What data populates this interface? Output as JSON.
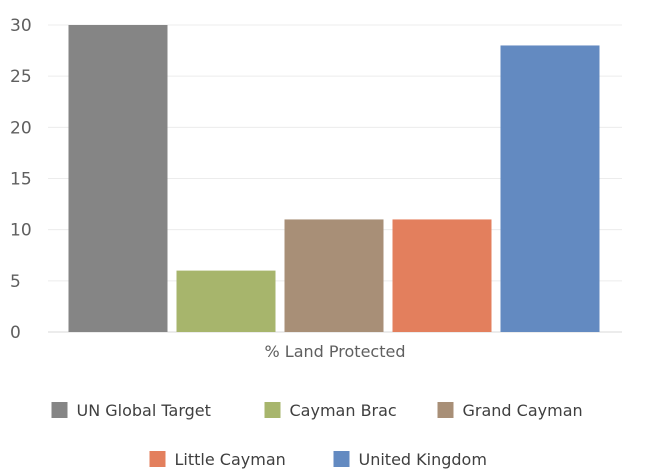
{
  "chart_data": {
    "type": "bar",
    "title": "",
    "xlabel": "",
    "ylabel": "",
    "categories": [
      "% Land Protected"
    ],
    "ylim": [
      0,
      30
    ],
    "yticks": [
      0,
      5,
      10,
      15,
      20,
      25,
      30
    ],
    "grid": true,
    "legend_position": "bottom",
    "series": [
      {
        "name": "UN Global Target",
        "values": [
          30
        ],
        "color": "#858585"
      },
      {
        "name": "Cayman Brac",
        "values": [
          6
        ],
        "color": "#a7b56c"
      },
      {
        "name": "Grand Cayman",
        "values": [
          11
        ],
        "color": "#a88f77"
      },
      {
        "name": "Little Cayman",
        "values": [
          11
        ],
        "color": "#e37f5d"
      },
      {
        "name": "United Kingdom",
        "values": [
          28
        ],
        "color": "#638ac1"
      }
    ]
  }
}
